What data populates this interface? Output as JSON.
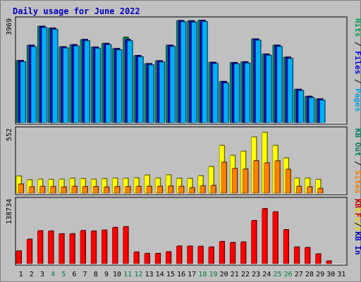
{
  "chart_data": {
    "type": "bar",
    "title": "Daily usage for June 2022",
    "x": [
      "1",
      "2",
      "3",
      "4",
      "5",
      "6",
      "7",
      "8",
      "9",
      "10",
      "11",
      "12",
      "13",
      "14",
      "15",
      "16",
      "17",
      "18",
      "19",
      "20",
      "21",
      "22",
      "23",
      "24",
      "25",
      "26",
      "27",
      "28",
      "29",
      "30",
      "31"
    ],
    "weekend_days": [
      "4",
      "5",
      "11",
      "12",
      "18",
      "19",
      "25",
      "26"
    ],
    "panels": [
      {
        "name": "hits-files-pages",
        "ytick": "3969",
        "ymax": 3969,
        "side_labels": [
          {
            "text": "Pages",
            "color": "#00a0e8"
          },
          {
            "text": "Files",
            "color": "#0000e0"
          },
          {
            "text": "Hits",
            "color": "#00a050"
          }
        ],
        "series": [
          {
            "name": "Hits",
            "color": "#008060",
            "values": [
              2390,
              2980,
              3710,
              3640,
              2920,
              3000,
              3200,
              2910,
              3050,
              2850,
              3290,
              2580,
              2270,
              2380,
              2980,
              3930,
              3920,
              3940,
              2320,
              1580,
              2310,
              2340,
              3220,
              2640,
              2980,
              2520,
              1280,
              1010,
              910,
              null,
              null
            ]
          },
          {
            "name": "Files",
            "color": "#0000c0",
            "values": [
              2390,
              2980,
              3710,
              3640,
              2920,
              3000,
              3200,
              2910,
              3050,
              2850,
              3200,
              2580,
              2270,
              2380,
              2980,
              3930,
              3920,
              3940,
              2320,
              1580,
              2310,
              2340,
              3220,
              2640,
              2980,
              2520,
              1280,
              1010,
              910,
              null,
              null
            ]
          },
          {
            "name": "Pages",
            "color": "#00b0f8",
            "values": [
              2340,
              2920,
              3660,
              3590,
              2870,
              2950,
              3150,
              2860,
              3000,
              2800,
              3150,
              2530,
              2220,
              2330,
              2930,
              3880,
              3870,
              3890,
              2270,
              1520,
              2260,
              2290,
              3170,
              2590,
              2930,
              2470,
              1230,
              960,
              860,
              null,
              null
            ]
          }
        ]
      },
      {
        "name": "visits-sites",
        "ytick": "552",
        "ymax": 552,
        "side_labels": [
          {
            "text": "Visits",
            "color": "#e8d800"
          },
          {
            "text": "Sites",
            "color": "#f08000"
          },
          {
            "text": "KB Out",
            "color": "#008060"
          }
        ],
        "series": [
          {
            "name": "Visits",
            "color": "#ffff00",
            "values": [
              148,
              115,
              120,
              118,
              120,
              128,
              125,
              120,
              125,
              130,
              128,
              132,
              156,
              130,
              158,
              128,
              126,
              150,
              230,
              414,
              328,
              364,
              488,
              528,
              414,
              305,
              130,
              130,
              118,
              null,
              null
            ]
          },
          {
            "name": "Sites",
            "color": "#ff8000",
            "values": [
              78,
              54,
              58,
              56,
              52,
              58,
              56,
              56,
              52,
              56,
              56,
              58,
              58,
              58,
              60,
              58,
              46,
              62,
              66,
              268,
              214,
              208,
              282,
              262,
              280,
              206,
              58,
              54,
              40,
              null,
              null
            ]
          }
        ]
      },
      {
        "name": "kb",
        "ytick": "138734",
        "ymax": 138734,
        "side_labels": [
          {
            "text": "KB In",
            "color": "#0000c0"
          },
          {
            "text": "KB F",
            "color": "#d00000"
          }
        ],
        "series": [
          {
            "name": "KB F",
            "color": "#ff0000",
            "values": [
              27500,
              53000,
              71500,
              71000,
              65000,
              65000,
              72000,
              71000,
              73000,
              79000,
              80500,
              25000,
              22000,
              22000,
              25500,
              38000,
              38000,
              37500,
              36000,
              48000,
              46000,
              47000,
              94000,
              120000,
              113000,
              74000,
              36000,
              35000,
              21000,
              5500,
              null
            ]
          }
        ]
      }
    ]
  }
}
